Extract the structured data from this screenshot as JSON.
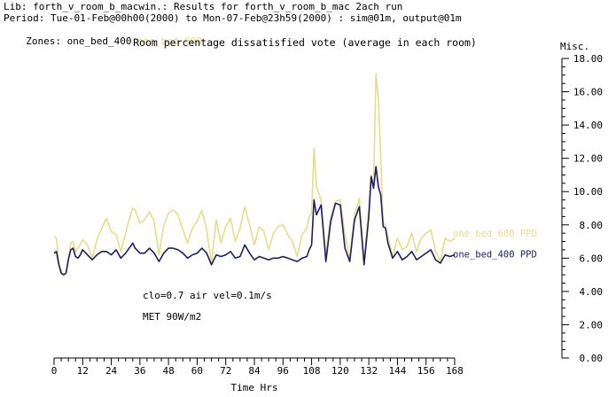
{
  "header": {
    "lib_line": "Lib: forth_v_room_b_macwin.: Results for forth_v_room_b_mac 2ach run",
    "period_line": "Period: Tue-01-Feb@00h00(2000) to Mon-07-Feb@23h59(2000) : sim@01m, output@01m",
    "zones_label": "Zones:",
    "zone_a": "one_bed_400",
    "zone_b": "one_bed_600"
  },
  "chart_data": {
    "type": "line",
    "title": "Room percentage dissatisfied vote (average in each room)",
    "xlabel": "Time Hrs",
    "y_axis_title": "Misc.",
    "xlim": [
      0,
      168
    ],
    "ylim": [
      0,
      18
    ],
    "x_ticks": [
      "0",
      "12",
      "24",
      "36",
      "48",
      "60",
      "72",
      "84",
      "96",
      "108",
      "120",
      "132",
      "144",
      "156",
      "168"
    ],
    "y_ticks": [
      "0.00",
      "2.00",
      "4.00",
      "6.00",
      "8.00",
      "10.00",
      "12.00",
      "14.00",
      "16.00",
      "18.00"
    ],
    "colors": {
      "series_a": "#1e1e64",
      "series_b": "#e6dd8a"
    },
    "annotations": [
      "clo=0.7 air vel=0.1m/s",
      "MET 90W/m2"
    ],
    "series": [
      {
        "name": "one_bed_600 PPD",
        "x": [
          0,
          1,
          2,
          3,
          4,
          5,
          6,
          7,
          8,
          9,
          10,
          11,
          12,
          14,
          16,
          18,
          20,
          22,
          24,
          26,
          28,
          30,
          32,
          33,
          34,
          36,
          38,
          40,
          42,
          44,
          46,
          48,
          50,
          52,
          54,
          56,
          58,
          60,
          62,
          64,
          66,
          68,
          70,
          72,
          74,
          76,
          78,
          80,
          82,
          84,
          86,
          88,
          90,
          92,
          94,
          96,
          98,
          100,
          102,
          104,
          106,
          107,
          108,
          109,
          110,
          112,
          114,
          116,
          118,
          120,
          122,
          124,
          126,
          128,
          130,
          132,
          133,
          134,
          135,
          136,
          137,
          138,
          139,
          140,
          142,
          144,
          146,
          148,
          150,
          152,
          154,
          156,
          158,
          160,
          162,
          164,
          166,
          168
        ],
        "y": [
          7.3,
          7.2,
          5.8,
          5.2,
          5.0,
          5.1,
          5.9,
          6.9,
          7.0,
          6.4,
          6.6,
          6.8,
          7.1,
          6.8,
          6.0,
          7.1,
          7.8,
          8.4,
          7.6,
          7.4,
          6.4,
          7.5,
          8.6,
          9.0,
          8.9,
          8.1,
          8.3,
          8.8,
          8.2,
          6.2,
          8.0,
          8.7,
          8.9,
          8.6,
          7.7,
          6.9,
          7.8,
          8.2,
          8.9,
          7.7,
          5.7,
          8.3,
          6.9,
          7.9,
          8.4,
          7.0,
          7.8,
          9.1,
          8.0,
          6.8,
          7.9,
          7.6,
          6.5,
          7.5,
          7.9,
          8.0,
          7.4,
          7.0,
          6.1,
          7.4,
          7.8,
          8.5,
          8.7,
          12.6,
          10.3,
          9.5,
          6.2,
          8.5,
          9.4,
          9.5,
          7.4,
          6.0,
          8.6,
          9.6,
          5.9,
          9.0,
          11.0,
          10.3,
          17.1,
          15.6,
          12.0,
          8.2,
          7.9,
          7.3,
          6.1,
          7.2,
          6.5,
          6.7,
          7.5,
          6.4,
          7.2,
          7.5,
          7.7,
          6.4,
          5.8,
          7.2,
          7.0,
          7.2
        ]
      },
      {
        "name": "one_bed_400 PPD",
        "x": [
          0,
          1,
          2,
          3,
          4,
          5,
          6,
          7,
          8,
          9,
          10,
          11,
          12,
          14,
          16,
          18,
          20,
          22,
          24,
          26,
          28,
          30,
          32,
          33,
          34,
          36,
          38,
          40,
          42,
          44,
          46,
          48,
          50,
          52,
          54,
          56,
          58,
          60,
          62,
          64,
          66,
          68,
          70,
          72,
          74,
          76,
          78,
          80,
          82,
          84,
          86,
          88,
          90,
          92,
          94,
          96,
          98,
          100,
          102,
          104,
          106,
          107,
          108,
          109,
          110,
          112,
          114,
          116,
          118,
          120,
          122,
          124,
          126,
          128,
          130,
          132,
          133,
          134,
          135,
          136,
          137,
          138,
          139,
          140,
          142,
          144,
          146,
          148,
          150,
          152,
          154,
          156,
          158,
          160,
          162,
          164,
          166,
          168
        ],
        "y": [
          6.3,
          6.4,
          5.6,
          5.1,
          5.0,
          5.1,
          5.9,
          6.5,
          6.6,
          6.1,
          6.0,
          6.2,
          6.5,
          6.2,
          5.9,
          6.2,
          6.4,
          6.4,
          6.2,
          6.5,
          6.0,
          6.3,
          6.7,
          6.9,
          6.6,
          6.3,
          6.3,
          6.6,
          6.3,
          5.8,
          6.3,
          6.6,
          6.6,
          6.5,
          6.3,
          6.0,
          6.2,
          6.3,
          6.6,
          6.3,
          5.6,
          6.2,
          6.1,
          6.2,
          6.4,
          6.0,
          6.1,
          6.8,
          6.3,
          5.9,
          6.1,
          6.0,
          5.9,
          6.0,
          6.0,
          6.1,
          6.0,
          5.9,
          5.8,
          6.0,
          6.1,
          6.5,
          6.8,
          9.5,
          8.6,
          9.2,
          5.8,
          8.2,
          9.3,
          9.2,
          6.6,
          5.8,
          8.3,
          9.1,
          5.6,
          8.5,
          10.9,
          10.2,
          11.5,
          10.3,
          9.8,
          7.9,
          7.8,
          6.9,
          6.0,
          6.4,
          5.9,
          6.1,
          6.4,
          5.9,
          6.1,
          6.3,
          6.5,
          5.9,
          5.7,
          6.2,
          6.1,
          6.2
        ]
      }
    ]
  }
}
